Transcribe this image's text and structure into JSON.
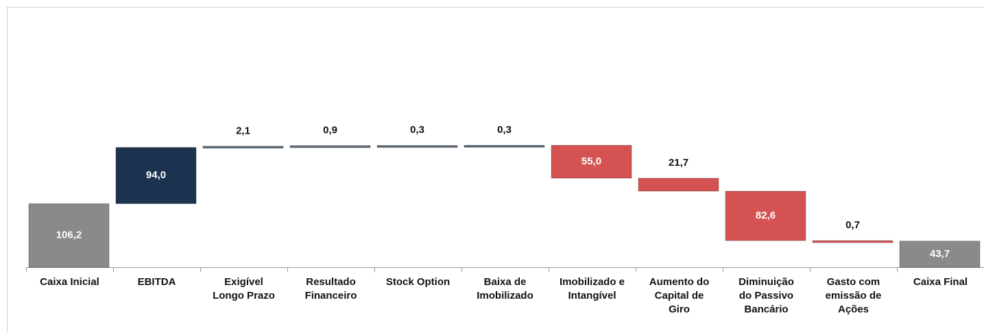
{
  "chart_data": {
    "type": "waterfall",
    "categories": [
      "Caixa Inicial",
      "EBITDA",
      "Exigível\nLongo Prazo",
      "Resultado\nFinanceiro",
      "Stock Option",
      "Baixa de\nImobilizado",
      "Imobilizado e\nIntangível",
      "Aumento do\nCapital de\nGiro",
      "Diminuição\ndo Passivo\nBancário",
      "Gasto com\nemissão de\nAções",
      "Caixa Final"
    ],
    "values": [
      106.2,
      94.0,
      2.1,
      0.9,
      0.3,
      0.3,
      -55.0,
      -21.7,
      -82.6,
      -0.7,
      43.7
    ],
    "value_labels": [
      "106,2",
      "94,0",
      "2,1",
      "0,9",
      "0,3",
      "0,3",
      "55,0",
      "21,7",
      "82,6",
      "0,7",
      "43,7"
    ],
    "measures": [
      "total",
      "relative",
      "relative",
      "relative",
      "relative",
      "relative",
      "relative",
      "relative",
      "relative",
      "relative",
      "total"
    ],
    "colors": [
      "#8a8a8a",
      "#1c3350",
      "#5b6876",
      "#5b6876",
      "#5b6876",
      "#5b6876",
      "#d45252",
      "#d45252",
      "#d45252",
      "#d45252",
      "#8a8a8a"
    ]
  }
}
